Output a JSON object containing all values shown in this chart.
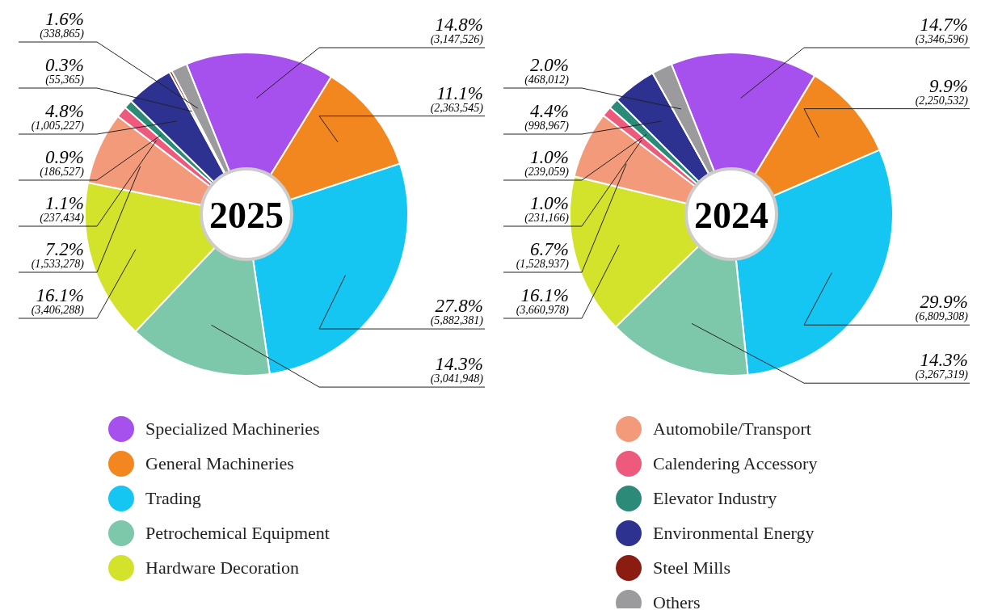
{
  "chart_data": {
    "type": "donut",
    "legend": "bottom",
    "categories": [
      "Specialized Machineries",
      "General Machineries",
      "Trading",
      "Petrochemical Equipment",
      "Hardware Decoration",
      "Automobile/Transport",
      "Calendering Accessory",
      "Elevator Industry",
      "Environmental Energy",
      "Steel Mills",
      "Others"
    ],
    "colors": [
      "#a650ee",
      "#f3871f",
      "#15c6f2",
      "#7dc8ab",
      "#d3e22a",
      "#f39a7b",
      "#ee5a7c",
      "#2b8a78",
      "#2d3190",
      "#8a1c12",
      "#9b9b9e"
    ],
    "series": [
      {
        "name": "2025",
        "values": [
          3147526,
          2363545,
          5882381,
          3041948,
          3406288,
          1533278,
          237434,
          186527,
          1005227,
          55365,
          338865
        ],
        "value_labels": [
          "14.8% (3,147,526)",
          "11.1% (2,363,545)",
          "27.8% (5,882,381)",
          "14.3% (3,041,948)",
          "16.1% (3,406,288)",
          "7.2% (1,533,278)",
          "1.1% (237,434)",
          "0.9% (186,527)",
          "4.8% (1,005,227)",
          "0.3% (55,365)",
          "1.6% (338,865)"
        ]
      },
      {
        "name": "2024",
        "values": [
          3346596,
          2250532,
          6809308,
          3267319,
          3660978,
          1528937,
          231166,
          239059,
          998967,
          0,
          468012
        ],
        "value_labels": [
          "14.7% (3,346,596)",
          "9.9% (2,250,532)",
          "29.9% (6,809,308)",
          "14.3% (3,267,319)",
          "16.1% (3,660,978)",
          "6.7% (1,528,937)",
          "1.0% (231,166)",
          "1.0% (239,059)",
          "4.4% (998,967)",
          null,
          "2.0% (468,012)"
        ]
      }
    ]
  }
}
